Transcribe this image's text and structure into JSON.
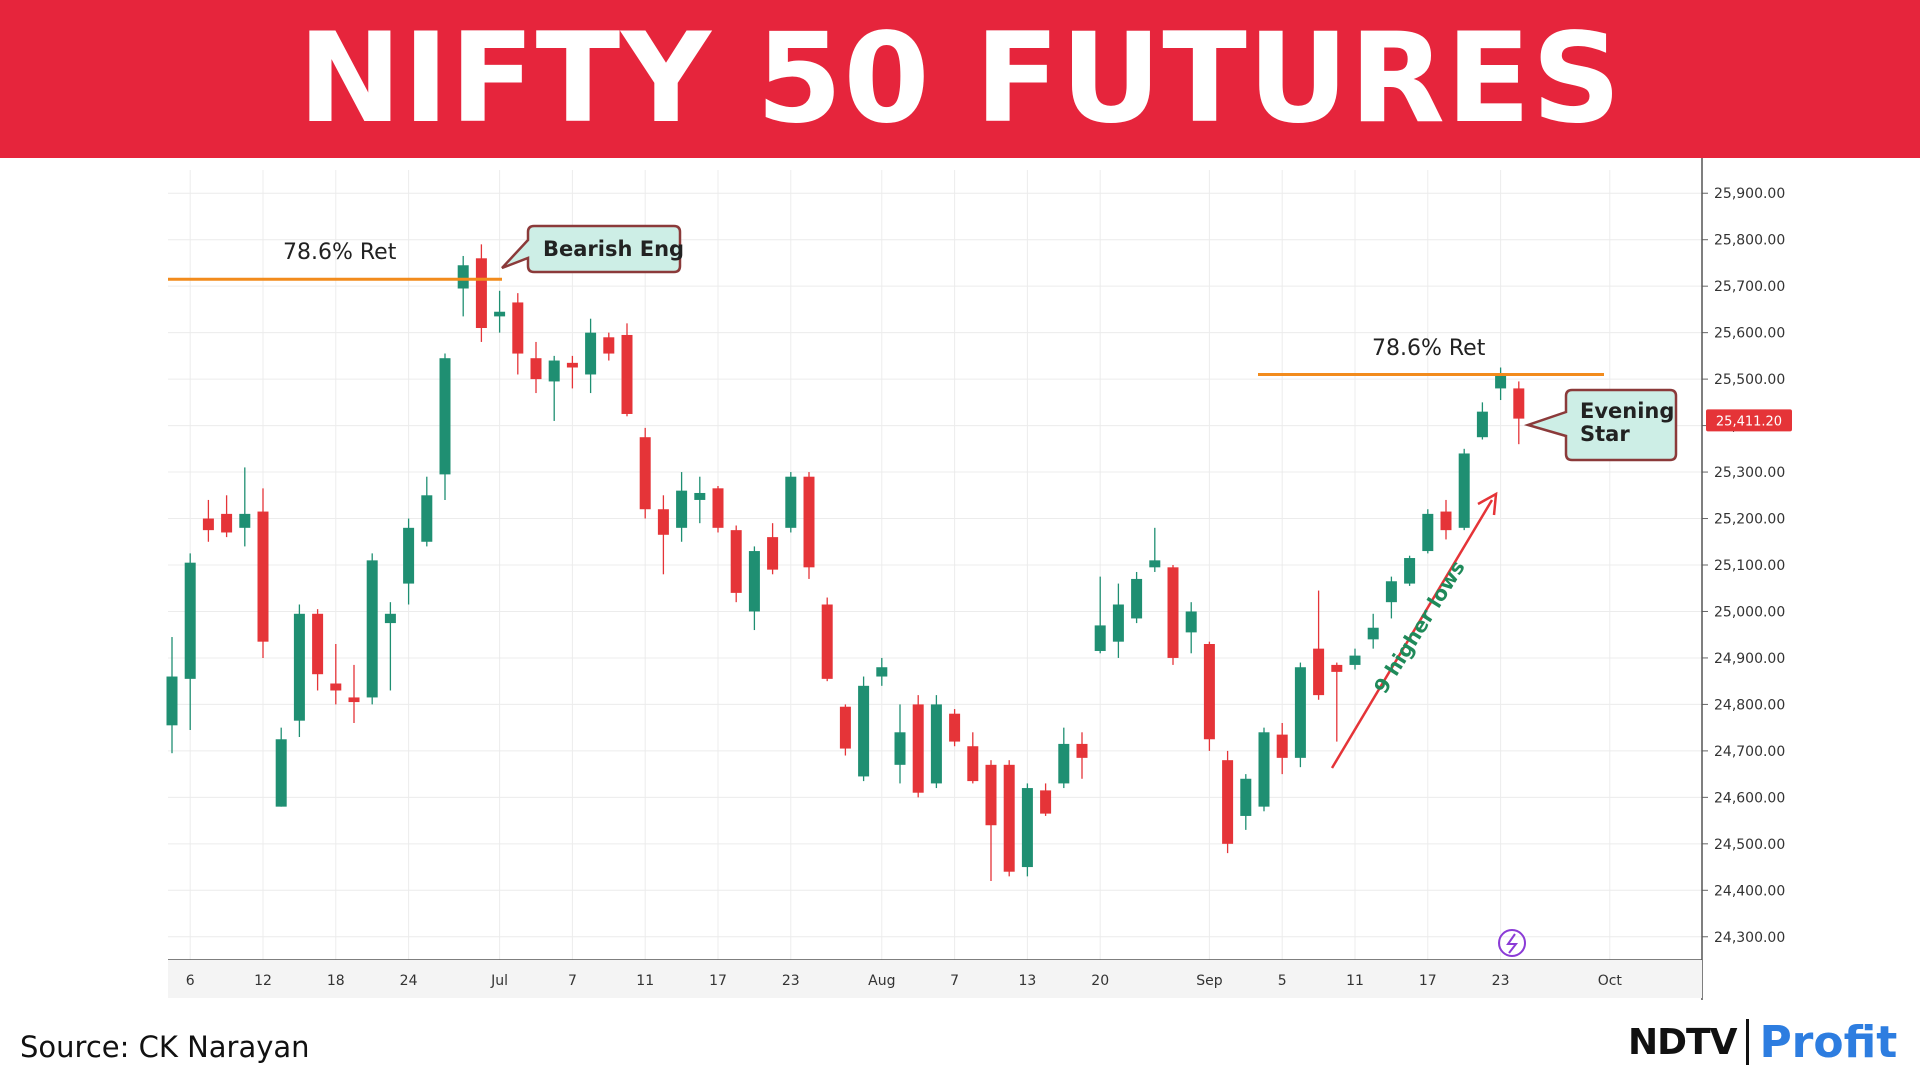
{
  "header": {
    "title": "NIFTY 50 FUTURES"
  },
  "footer": {
    "source": "Source: CK Narayan",
    "logo_left": "NDTV",
    "logo_right": "Profit"
  },
  "colors": {
    "up": "#1f8f72",
    "down": "#e53438",
    "fib_line": "#f28b1c",
    "callout_fill": "#cdeee6",
    "callout_border": "#8b3a3a",
    "banner": "#e6253c",
    "price_tag": "#e53438"
  },
  "chart_data": {
    "type": "candlestick",
    "title": "",
    "y_axis": {
      "min": 24250,
      "max": 25950,
      "ticks": [
        "25,900.00",
        "25,800.00",
        "25,700.00",
        "25,600.00",
        "25,500.00",
        "25,400.00",
        "25,300.00",
        "25,200.00",
        "25,100.00",
        "25,000.00",
        "24,900.00",
        "24,800.00",
        "24,700.00",
        "24,600.00",
        "24,500.00",
        "24,400.00",
        "24,300.00"
      ],
      "tick_values": [
        25900,
        25800,
        25700,
        25600,
        25500,
        25400,
        25300,
        25200,
        25100,
        25000,
        24900,
        24800,
        24700,
        24600,
        24500,
        24400,
        24300
      ]
    },
    "x_axis": {
      "labels": [
        "6",
        "12",
        "18",
        "24",
        "Jul",
        "7",
        "11",
        "17",
        "23",
        "Aug",
        "7",
        "13",
        "20",
        "Sep",
        "5",
        "11",
        "17",
        "23",
        "Oct"
      ],
      "label_index": [
        1,
        5,
        9,
        13,
        18,
        22,
        26,
        30,
        34,
        39,
        43,
        47,
        51,
        57,
        61,
        65,
        69,
        73,
        79
      ]
    },
    "grid": true,
    "last_price": {
      "label": "25,411.20",
      "value": 25411.2
    },
    "candles": [
      {
        "o": 24755,
        "h": 24945,
        "l": 24695,
        "c": 24860
      },
      {
        "o": 24855,
        "h": 25125,
        "l": 24745,
        "c": 25105
      },
      {
        "o": 25200,
        "h": 25240,
        "l": 25150,
        "c": 25175
      },
      {
        "o": 25210,
        "h": 25250,
        "l": 25160,
        "c": 25170
      },
      {
        "o": 25180,
        "h": 25310,
        "l": 25140,
        "c": 25210
      },
      {
        "o": 25215,
        "h": 25265,
        "l": 24900,
        "c": 24935
      },
      {
        "o": 24580,
        "h": 24750,
        "l": 24580,
        "c": 24725
      },
      {
        "o": 24765,
        "h": 25015,
        "l": 24730,
        "c": 24995
      },
      {
        "o": 24995,
        "h": 25005,
        "l": 24830,
        "c": 24865
      },
      {
        "o": 24845,
        "h": 24930,
        "l": 24800,
        "c": 24830
      },
      {
        "o": 24815,
        "h": 24885,
        "l": 24760,
        "c": 24805
      },
      {
        "o": 24815,
        "h": 25125,
        "l": 24800,
        "c": 25110
      },
      {
        "o": 24975,
        "h": 25020,
        "l": 24830,
        "c": 24995
      },
      {
        "o": 25060,
        "h": 25200,
        "l": 25015,
        "c": 25180
      },
      {
        "o": 25150,
        "h": 25290,
        "l": 25140,
        "c": 25250
      },
      {
        "o": 25295,
        "h": 25555,
        "l": 25240,
        "c": 25545
      },
      {
        "o": 25695,
        "h": 25765,
        "l": 25635,
        "c": 25745
      },
      {
        "o": 25760,
        "h": 25790,
        "l": 25580,
        "c": 25610
      },
      {
        "o": 25635,
        "h": 25690,
        "l": 25600,
        "c": 25645
      },
      {
        "o": 25665,
        "h": 25685,
        "l": 25510,
        "c": 25555
      },
      {
        "o": 25545,
        "h": 25580,
        "l": 25470,
        "c": 25500
      },
      {
        "o": 25495,
        "h": 25550,
        "l": 25410,
        "c": 25540
      },
      {
        "o": 25535,
        "h": 25550,
        "l": 25480,
        "c": 25525
      },
      {
        "o": 25510,
        "h": 25630,
        "l": 25470,
        "c": 25600
      },
      {
        "o": 25590,
        "h": 25600,
        "l": 25540,
        "c": 25555
      },
      {
        "o": 25595,
        "h": 25620,
        "l": 25420,
        "c": 25425
      },
      {
        "o": 25375,
        "h": 25395,
        "l": 25200,
        "c": 25220
      },
      {
        "o": 25220,
        "h": 25250,
        "l": 25080,
        "c": 25165
      },
      {
        "o": 25180,
        "h": 25300,
        "l": 25150,
        "c": 25260
      },
      {
        "o": 25240,
        "h": 25290,
        "l": 25190,
        "c": 25255
      },
      {
        "o": 25265,
        "h": 25270,
        "l": 25170,
        "c": 25180
      },
      {
        "o": 25175,
        "h": 25185,
        "l": 25020,
        "c": 25040
      },
      {
        "o": 25000,
        "h": 25140,
        "l": 24960,
        "c": 25130
      },
      {
        "o": 25160,
        "h": 25190,
        "l": 25080,
        "c": 25090
      },
      {
        "o": 25180,
        "h": 25300,
        "l": 25170,
        "c": 25290
      },
      {
        "o": 25290,
        "h": 25300,
        "l": 25070,
        "c": 25095
      },
      {
        "o": 25015,
        "h": 25030,
        "l": 24850,
        "c": 24855
      },
      {
        "o": 24795,
        "h": 24800,
        "l": 24690,
        "c": 24705
      },
      {
        "o": 24645,
        "h": 24860,
        "l": 24635,
        "c": 24840
      },
      {
        "o": 24860,
        "h": 24900,
        "l": 24840,
        "c": 24880
      },
      {
        "o": 24670,
        "h": 24800,
        "l": 24630,
        "c": 24740
      },
      {
        "o": 24800,
        "h": 24820,
        "l": 24600,
        "c": 24610
      },
      {
        "o": 24630,
        "h": 24820,
        "l": 24620,
        "c": 24800
      },
      {
        "o": 24780,
        "h": 24790,
        "l": 24710,
        "c": 24720
      },
      {
        "o": 24710,
        "h": 24740,
        "l": 24630,
        "c": 24635
      },
      {
        "o": 24670,
        "h": 24680,
        "l": 24420,
        "c": 24540
      },
      {
        "o": 24670,
        "h": 24680,
        "l": 24430,
        "c": 24440
      },
      {
        "o": 24450,
        "h": 24630,
        "l": 24430,
        "c": 24620
      },
      {
        "o": 24615,
        "h": 24630,
        "l": 24560,
        "c": 24565
      },
      {
        "o": 24630,
        "h": 24750,
        "l": 24620,
        "c": 24715
      },
      {
        "o": 24715,
        "h": 24740,
        "l": 24640,
        "c": 24685
      },
      {
        "o": 24915,
        "h": 25075,
        "l": 24910,
        "c": 24970
      },
      {
        "o": 24935,
        "h": 25060,
        "l": 24900,
        "c": 25015
      },
      {
        "o": 24985,
        "h": 25085,
        "l": 24975,
        "c": 25070
      },
      {
        "o": 25095,
        "h": 25180,
        "l": 25085,
        "c": 25110
      },
      {
        "o": 25095,
        "h": 25100,
        "l": 24885,
        "c": 24900
      },
      {
        "o": 24955,
        "h": 25020,
        "l": 24910,
        "c": 25000
      },
      {
        "o": 24930,
        "h": 24935,
        "l": 24700,
        "c": 24725
      },
      {
        "o": 24680,
        "h": 24700,
        "l": 24480,
        "c": 24500
      },
      {
        "o": 24560,
        "h": 24650,
        "l": 24530,
        "c": 24640
      },
      {
        "o": 24580,
        "h": 24750,
        "l": 24570,
        "c": 24740
      },
      {
        "o": 24735,
        "h": 24760,
        "l": 24650,
        "c": 24685
      },
      {
        "o": 24685,
        "h": 24890,
        "l": 24665,
        "c": 24880
      },
      {
        "o": 24920,
        "h": 25045,
        "l": 24810,
        "c": 24820
      },
      {
        "o": 24885,
        "h": 24890,
        "l": 24720,
        "c": 24870
      },
      {
        "o": 24885,
        "h": 24920,
        "l": 24875,
        "c": 24905
      },
      {
        "o": 24940,
        "h": 24995,
        "l": 24920,
        "c": 24965
      },
      {
        "o": 25020,
        "h": 25075,
        "l": 24985,
        "c": 25065
      },
      {
        "o": 25060,
        "h": 25120,
        "l": 25055,
        "c": 25115
      },
      {
        "o": 25130,
        "h": 25220,
        "l": 25125,
        "c": 25210
      },
      {
        "o": 25215,
        "h": 25240,
        "l": 25155,
        "c": 25175
      },
      {
        "o": 25180,
        "h": 25350,
        "l": 25175,
        "c": 25340
      },
      {
        "o": 25375,
        "h": 25450,
        "l": 25370,
        "c": 25430
      },
      {
        "o": 25480,
        "h": 25525,
        "l": 25455,
        "c": 25510
      },
      {
        "o": 25480,
        "h": 25495,
        "l": 25360,
        "c": 25415
      }
    ],
    "annotations": {
      "fib_left": {
        "label": "78.6% Ret",
        "level": 25715
      },
      "fib_right": {
        "label": "78.6% Ret",
        "level": 25510
      },
      "callout_bearish": {
        "label": "Bearish Eng"
      },
      "callout_evening": {
        "line1": "Evening",
        "line2": "Star"
      },
      "higher_lows": {
        "label": "9 higher lows"
      }
    }
  }
}
